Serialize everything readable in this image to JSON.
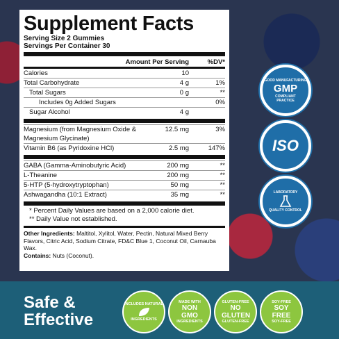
{
  "label": {
    "title": "Supplement Facts",
    "serving_size": "Serving Size 2 Gummies",
    "servings": "Servings Per Container 30",
    "header": {
      "amount": "Amount Per Serving",
      "dv": "%DV*"
    },
    "groups": [
      {
        "rows": [
          {
            "name": "Calories",
            "amount": "10"
          },
          {
            "name": "Total Carbohydrate",
            "amount": "4 g",
            "dv": "1%"
          },
          {
            "name": "Total Sugars",
            "amount": "0 g",
            "dv": "**"
          },
          {
            "name": "Includes 0g Added Sugars",
            "dv": "0%"
          },
          {
            "name": "Sugar Alcohol",
            "amount": "4 g"
          }
        ]
      },
      {
        "rows": [
          {
            "name": "Magnesium (from Magnesium Oxide & Magnesium Glycinate)",
            "amount": "12.5 mg",
            "dv": "3%"
          },
          {
            "name": "Vitamin B6 (as Pyridoxine HCl)",
            "amount": "2.5 mg",
            "dv": "147%"
          }
        ]
      },
      {
        "rows": [
          {
            "name": "GABA (Gamma-Aminobutyric Acid)",
            "amount": "200 mg",
            "dv": "**"
          },
          {
            "name": "L-Theanine",
            "amount": "200 mg",
            "dv": "**"
          },
          {
            "name": "5-HTP (5-hydroxytryptophan)",
            "amount": "50 mg",
            "dv": "**"
          },
          {
            "name": "Ashwagandha (10:1 Extract)",
            "amount": "35 mg",
            "dv": "**"
          }
        ]
      }
    ],
    "footnotes": [
      "* Percent Daily Values are based on a 2,000 calorie diet.",
      "** Daily Value not established."
    ],
    "other_label": "Other Ingredients:",
    "other": "Maltitol, Xylitol, Water, Pectin, Natural Mixed Berry Flavors, Citric Acid, Sodium Citrate, FD&C Blue 1, Coconut Oil, Carnauba Wax.",
    "contains_label": "Contains:",
    "contains": "Nuts (Coconut)."
  },
  "side_badges": [
    {
      "top": "GOOD MANUFACTURING",
      "main": "GMP",
      "sub": "COMPLIANT",
      "bottom": "PRACTICE"
    },
    {
      "main": "ISO"
    },
    {
      "top": "LABORATORY",
      "bottom": "QUALITY CONTROL"
    }
  ],
  "banner": {
    "line1": "Safe &",
    "line2": "Effective",
    "badges": [
      {
        "top": "INCLUDES NATURAL",
        "bottom": "INGREDIENTS"
      },
      {
        "top": "MADE WITH",
        "main": "NON GMO",
        "bottom": "INGREDIENTS"
      },
      {
        "top": "GLUTEN-FREE",
        "main": "NO GLUTEN",
        "bottom": "GLUTEN-FREE"
      },
      {
        "top": "SOY-FREE",
        "main": "SOY FREE",
        "bottom": "SOY-FREE"
      }
    ]
  }
}
